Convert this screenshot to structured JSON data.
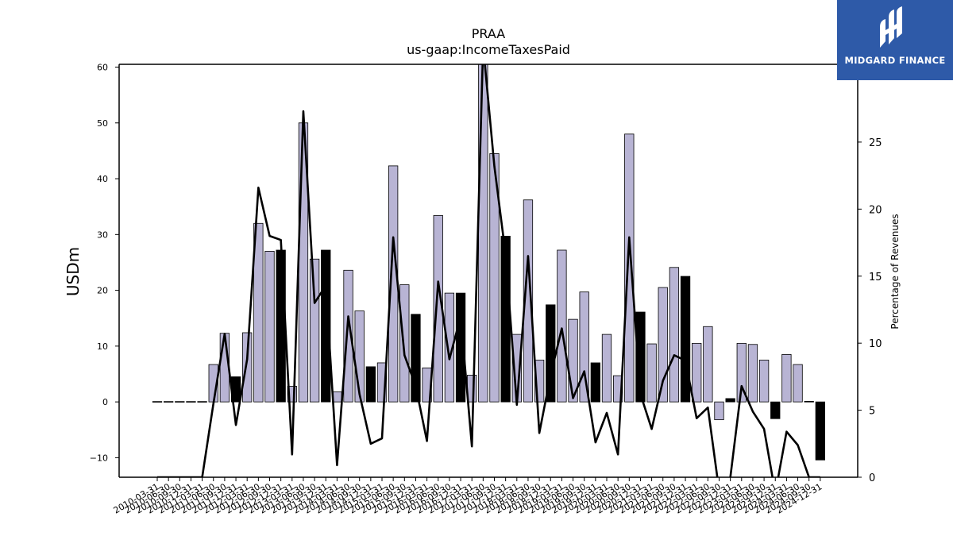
{
  "chart_data": {
    "type": "bar",
    "title": "PRAA",
    "subtitle": "us-gaap:IncomeTaxesPaid",
    "ylabel": "USDm",
    "y2label": "Percentage of Revenues",
    "ylim": [
      -13.5,
      60.5
    ],
    "y2lim": [
      0,
      30.8
    ],
    "yticks": [
      -10,
      0,
      10,
      20,
      30,
      40,
      50,
      60
    ],
    "y2ticks": [
      0,
      5,
      10,
      15,
      20,
      25,
      30
    ],
    "categories": [
      "2010-03-31",
      "2010-06-30",
      "2010-09-30",
      "2010-12-31",
      "2011-03-31",
      "2011-06-30",
      "2011-09-30",
      "2011-12-31",
      "2012-03-31",
      "2012-06-30",
      "2012-09-30",
      "2012-12-31",
      "2013-03-31",
      "2013-06-30",
      "2013-09-30",
      "2013-12-31",
      "2014-03-31",
      "2014-06-30",
      "2014-09-30",
      "2014-12-31",
      "2015-03-31",
      "2015-06-30",
      "2015-09-30",
      "2015-12-31",
      "2016-03-31",
      "2016-06-30",
      "2016-09-30",
      "2016-12-31",
      "2017-03-31",
      "2017-06-30",
      "2017-09-30",
      "2017-12-31",
      "2018-03-31",
      "2018-06-30",
      "2018-09-30",
      "2018-12-31",
      "2019-03-31",
      "2019-06-30",
      "2019-09-30",
      "2019-12-31",
      "2020-03-31",
      "2020-06-30",
      "2020-09-30",
      "2020-12-31",
      "2021-03-31",
      "2021-06-30",
      "2021-09-30",
      "2021-12-31",
      "2022-03-31",
      "2022-06-30",
      "2022-09-30",
      "2022-12-31",
      "2023-03-31",
      "2023-06-30",
      "2023-09-30",
      "2023-12-31",
      "2024-03-31",
      "2024-06-30",
      "2024-09-30",
      "2024-12-31"
    ],
    "series": [
      {
        "kind": "bar",
        "values": [
          0,
          0,
          0,
          0,
          0,
          6.7,
          12.3,
          4.5,
          12.4,
          32,
          27,
          27.2,
          2.8,
          50,
          25.6,
          27.2,
          1.8,
          23.6,
          16.3,
          6.3,
          7,
          42.3,
          21,
          15.7,
          6.1,
          33.4,
          19.5,
          19.5,
          4.8,
          60.5,
          44.5,
          29.7,
          12.1,
          36.2,
          7.5,
          17.4,
          27.2,
          14.8,
          19.7,
          7,
          12.1,
          4.7,
          48,
          16.1,
          10.4,
          20.5,
          24.1,
          22.5,
          10.5,
          13.5,
          -3.2,
          0.6,
          10.5,
          10.3,
          7.5,
          -3,
          8.5,
          6.7,
          0.1,
          -10.4
        ],
        "highlight": [
          false,
          false,
          false,
          false,
          false,
          false,
          false,
          true,
          false,
          false,
          false,
          true,
          false,
          false,
          false,
          true,
          false,
          false,
          false,
          true,
          false,
          false,
          false,
          true,
          false,
          false,
          false,
          true,
          false,
          false,
          false,
          true,
          false,
          false,
          false,
          true,
          false,
          false,
          false,
          true,
          false,
          false,
          false,
          true,
          false,
          false,
          false,
          true,
          false,
          false,
          false,
          true,
          false,
          false,
          false,
          true,
          false,
          false,
          false,
          true
        ],
        "colors": {
          "normal": "#b8b4d4",
          "highlight": "#000000"
        }
      },
      {
        "kind": "line",
        "axis": "right",
        "color": "#000000",
        "values": [
          0,
          0,
          0,
          0,
          0,
          5.5,
          10.7,
          3.9,
          8.8,
          21.6,
          18,
          17.7,
          1.7,
          27.3,
          13,
          14.3,
          0.9,
          12,
          6.2,
          2.5,
          2.9,
          17.9,
          9.1,
          6.8,
          2.7,
          14.6,
          8.8,
          12,
          2.3,
          32.2,
          23.2,
          16.6,
          5.4,
          16.5,
          3.3,
          7.6,
          11.1,
          5.9,
          7.9,
          2.6,
          4.8,
          1.7,
          17.9,
          6.2,
          3.6,
          7.2,
          9.1,
          8.7,
          4.4,
          5.2,
          -1,
          0,
          6.8,
          4.9,
          3.6,
          -1.2,
          3.4,
          2.4,
          0,
          0
        ]
      }
    ],
    "grid": false,
    "legend": "none"
  },
  "logo": {
    "text": "MIDGARD FINANCE",
    "bg": "#2e5aa8"
  }
}
